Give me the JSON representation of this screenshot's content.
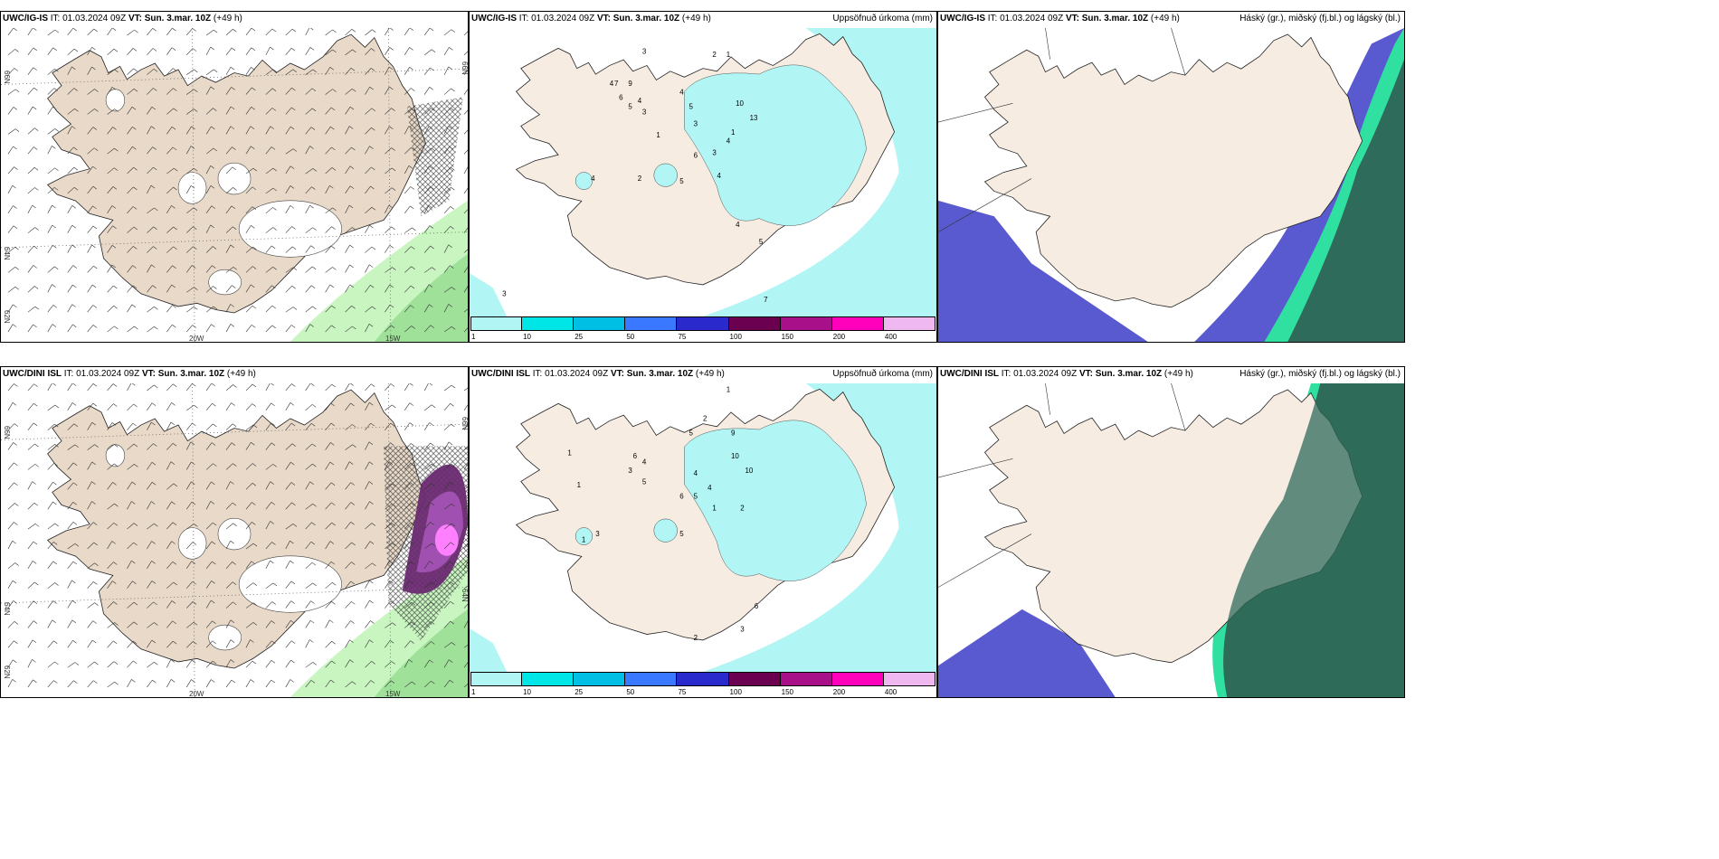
{
  "panels": [
    {
      "id": "p1",
      "model": "UWC/IG-IS",
      "it": "IT: 01.03.2024 09Z",
      "vt": "VT: Sun. 3.mar. 10Z",
      "lead": "(+49 h)",
      "variable": "",
      "type": "wind"
    },
    {
      "id": "p2",
      "model": "UWC/IG-IS",
      "it": "IT: 01.03.2024 09Z",
      "vt": "VT: Sun. 3.mar. 10Z",
      "lead": "(+49 h)",
      "variable": "Uppsöfnuð úrkoma (mm)",
      "type": "precip"
    },
    {
      "id": "p3",
      "model": "UWC/IG-IS",
      "it": "IT: 01.03.2024 09Z",
      "vt": "VT: Sun. 3.mar. 10Z",
      "lead": "(+49 h)",
      "variable": "Háský (gr.), miðský (fj.bl.) og lágský (bl.)",
      "type": "cloud"
    },
    {
      "id": "p4",
      "model": "UWC/DINI ISL",
      "it": "IT: 01.03.2024 09Z",
      "vt": "VT: Sun. 3.mar. 10Z",
      "lead": "(+49 h)",
      "variable": "",
      "type": "wind"
    },
    {
      "id": "p5",
      "model": "UWC/DINI ISL",
      "it": "IT: 01.03.2024 09Z",
      "vt": "VT: Sun. 3.mar. 10Z",
      "lead": "(+49 h)",
      "variable": "Uppsöfnuð úrkoma (mm)",
      "type": "precip"
    },
    {
      "id": "p6",
      "model": "UWC/DINI ISL",
      "it": "IT: 01.03.2024 09Z",
      "vt": "VT: Sun. 3.mar. 10Z",
      "lead": "(+49 h)",
      "variable": "Háský (gr.), miðský (fj.bl.) og lágský (bl.)",
      "type": "cloud"
    }
  ],
  "gridlabels": {
    "lat66": "66N",
    "lat64": "64N",
    "lat62": "62N",
    "lon20": "20W",
    "lon15": "15W"
  },
  "colorbar": {
    "ticks": [
      "1",
      "10",
      "25",
      "50",
      "75",
      "100",
      "150",
      "200",
      "400"
    ],
    "colors": [
      "#b2f5f5",
      "#00e5e5",
      "#00bfe5",
      "#3a78ff",
      "#2a2acc",
      "#6b0050",
      "#a8108a",
      "#ff00bb",
      "#f0b8f0"
    ]
  },
  "colors": {
    "land": "#f7ece1",
    "landWind": "#e8d9c8",
    "ocean": "#ffffff",
    "precipLight": "#b2f5f5",
    "greenLight": "#c8f5c0",
    "greenMid": "#8fd88a",
    "purple": "#a050b0",
    "cloudLow": "#5a5ad0",
    "cloudHigh": "#2f6b5a",
    "cloudMidGreen": "#2fe0a0"
  },
  "precip_labels_top": [
    [
      "3",
      "37%",
      "9%"
    ],
    [
      "2",
      "52%",
      "10%"
    ],
    [
      "1",
      "55%",
      "10%"
    ],
    [
      "1",
      "40%",
      "38%"
    ],
    [
      "4",
      "30%",
      "20%"
    ],
    [
      "7",
      "31%",
      "20%"
    ],
    [
      "9",
      "34%",
      "20%"
    ],
    [
      "4",
      "36%",
      "26%"
    ],
    [
      "6",
      "32%",
      "25%"
    ],
    [
      "5",
      "34%",
      "28%"
    ],
    [
      "3",
      "37%",
      "30%"
    ],
    [
      "4",
      "45%",
      "23%"
    ],
    [
      "5",
      "47%",
      "28%"
    ],
    [
      "3",
      "48%",
      "34%"
    ],
    [
      "6",
      "48%",
      "45%"
    ],
    [
      "3",
      "52%",
      "44%"
    ],
    [
      "4",
      "55%",
      "40%"
    ],
    [
      "1",
      "56%",
      "37%"
    ],
    [
      "10",
      "57%",
      "27%"
    ],
    [
      "13",
      "60%",
      "32%"
    ],
    [
      "4",
      "53%",
      "52%"
    ],
    [
      "5",
      "45%",
      "54%"
    ],
    [
      "2",
      "36%",
      "53%"
    ],
    [
      "4",
      "26%",
      "53%"
    ],
    [
      "4",
      "57%",
      "69%"
    ],
    [
      "5",
      "62%",
      "75%"
    ],
    [
      "3",
      "7%",
      "93%"
    ],
    [
      "7",
      "63%",
      "95%"
    ]
  ],
  "precip_labels_bottom": [
    [
      "1",
      "55%",
      "3%"
    ],
    [
      "2",
      "50%",
      "13%"
    ],
    [
      "5",
      "47%",
      "18%"
    ],
    [
      "9",
      "56%",
      "18%"
    ],
    [
      "10",
      "56%",
      "26%"
    ],
    [
      "10",
      "59%",
      "31%"
    ],
    [
      "4",
      "37%",
      "28%"
    ],
    [
      "6",
      "35%",
      "26%"
    ],
    [
      "3",
      "34%",
      "31%"
    ],
    [
      "5",
      "37%",
      "35%"
    ],
    [
      "4",
      "48%",
      "32%"
    ],
    [
      "5",
      "48%",
      "40%"
    ],
    [
      "4",
      "51%",
      "37%"
    ],
    [
      "6",
      "45%",
      "40%"
    ],
    [
      "1",
      "21%",
      "25%"
    ],
    [
      "1",
      "23%",
      "36%"
    ],
    [
      "1",
      "52%",
      "44%"
    ],
    [
      "2",
      "58%",
      "44%"
    ],
    [
      "5",
      "45%",
      "53%"
    ],
    [
      "3",
      "27%",
      "53%"
    ],
    [
      "1",
      "24%",
      "55%"
    ],
    [
      "6",
      "61%",
      "78%"
    ],
    [
      "3",
      "58%",
      "86%"
    ],
    [
      "2",
      "48%",
      "89%"
    ]
  ]
}
